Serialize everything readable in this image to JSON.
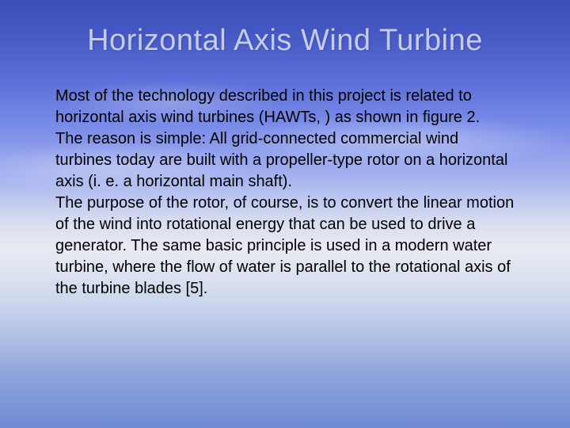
{
  "slide": {
    "title": "Horizontal Axis Wind Turbine",
    "paragraphs": [
      "Most of the technology described in this project is related to horizontal axis wind turbines (HAWTs, ) as shown in figure 2.",
      "The reason is simple: All grid-connected commercial wind turbines today are built with a propeller-type rotor on a horizontal axis (i. e. a horizontal main shaft).",
      "The purpose of the rotor, of course, is to convert the linear motion of the wind into rotational energy that can be used to drive a generator. The same basic principle is used in a modern water turbine, where the flow of water is parallel to the rotational axis of the turbine blades [5]."
    ],
    "styling": {
      "title_color": "#c4cce8",
      "body_text_color": "#000000",
      "title_fontsize": 38,
      "body_fontsize": 20,
      "background_gradient_stops": [
        "#3b4db8",
        "#4658c4",
        "#5a6dd8",
        "#7b8de8",
        "#a8b5f0",
        "#d8deef",
        "#e8eaf2",
        "#dde3f0",
        "#c8d3ec",
        "#adbce4",
        "#8ea3dc",
        "#6e8ad4"
      ],
      "font_family": "Arial"
    }
  }
}
